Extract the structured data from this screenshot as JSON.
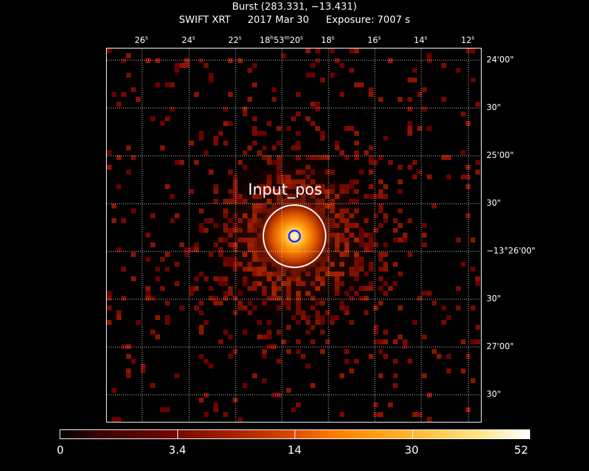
{
  "header": {
    "title": "Burst (283.331, −13.431)",
    "instrument": "SWIFT XRT",
    "date": "2017 Mar 30",
    "exposure": "Exposure: 7007 s"
  },
  "axes": {
    "ra_ticks": [
      {
        "num": "26",
        "unit": "s"
      },
      {
        "num": "24",
        "unit": "s"
      },
      {
        "num": "22",
        "unit": "s"
      },
      {
        "pre": "18",
        "h": "h",
        "mid": "53",
        "m": "m",
        "num": "20",
        "unit": "s"
      },
      {
        "num": "18",
        "unit": "s"
      },
      {
        "num": "16",
        "unit": "s"
      },
      {
        "num": "14",
        "unit": "s"
      },
      {
        "num": "12",
        "unit": "s"
      }
    ],
    "dec_ticks": [
      "24'00\"",
      "30\"",
      "25'00\"",
      "30\"",
      "−13°26'00\"",
      "30\"",
      "27'00\"",
      "30\""
    ]
  },
  "source": {
    "label": "Input_pos",
    "outer_circle_color": "#ffffff",
    "inner_circle_color": "#1030ff"
  },
  "colorbar": {
    "labels": [
      "0",
      "3.4",
      "14",
      "30",
      "52"
    ]
  }
}
